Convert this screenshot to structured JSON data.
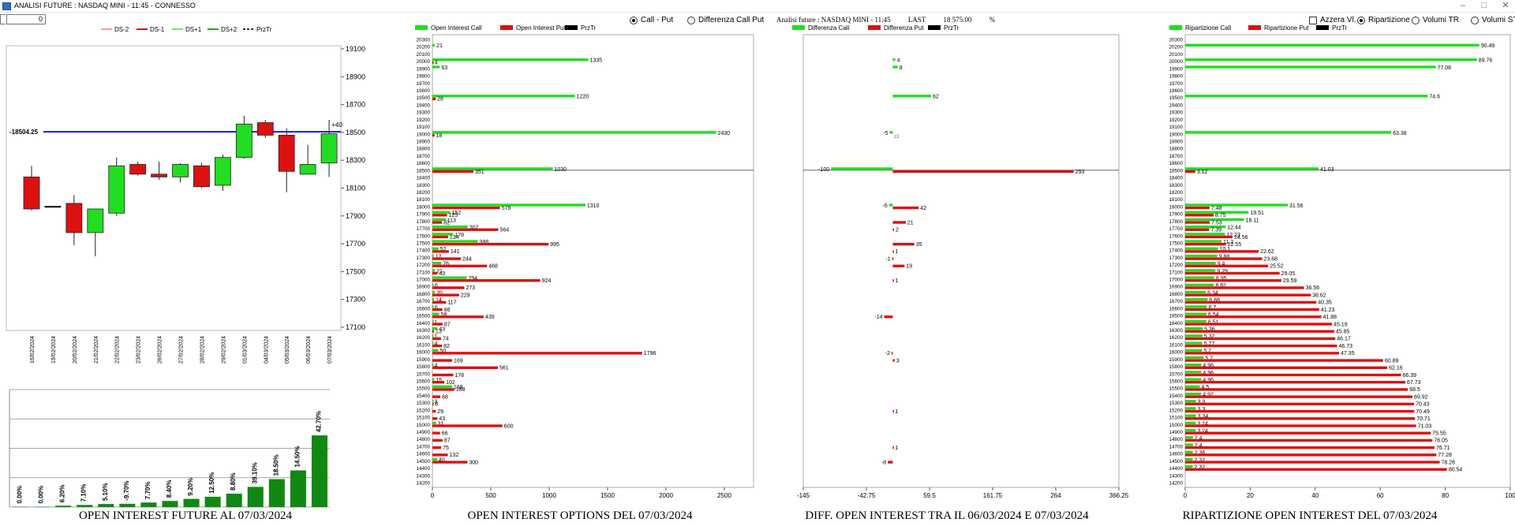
{
  "window": {
    "title": "ANALISI FUTURE : NASDAQ MINI - 11:45 - CONNESSO",
    "min_icon": "minimize-icon",
    "max_icon": "maximize-icon",
    "close_icon": "close-icon"
  },
  "controls": {
    "zoom_value": "0",
    "call_put_label": "Call - Put",
    "diff_call_put_label": "Differenza Call Put",
    "selected_mode": "call_put",
    "azzera_label": "Azzera Vl.",
    "ripartizione_label": "Ripartizione",
    "volumi_tr_label": "Volumi TR",
    "volumi_st_label": "Volumi ST",
    "selected_volume_mode": "ripartizione"
  },
  "header_info": {
    "label": "Analisi future : NASDAQ MINI - 11:45",
    "last_label": "LAST",
    "last_value": "18 575.00",
    "pct": "%"
  },
  "colors": {
    "green": "#22dd22",
    "red": "#dd1111",
    "dark_green": "#118811",
    "blue_line": "#1a1acc",
    "grid": "#888888"
  },
  "panel_titles": {
    "future": "OPEN INTEREST FUTURE AL 07/03/2024",
    "options": "OPEN INTEREST OPTIONS DEL 07/03/2024",
    "diff": "DIFF. OPEN INTEREST TRA IL 06/03/2024 E 07/03/2024",
    "ripartizione": "RIPARTIZIONE OPEN INTEREST DEL 07/03/2024"
  },
  "chart_data": [
    {
      "type": "candlestick",
      "legend": [
        "DS-2",
        "DS-1",
        "DS+1",
        "DS+2",
        "PrzTr"
      ],
      "legend_colors": [
        "#f5a0a0",
        "#dd1111",
        "#66ee66",
        "#22aa22",
        "#333333"
      ],
      "y_ticks": [
        "19100",
        "18900",
        "18700",
        "18500",
        "18300",
        "18100",
        "17900",
        "17700",
        "17500",
        "17300",
        "17100"
      ],
      "ylim": [
        17100,
        19100
      ],
      "price_line": 18504.25,
      "price_label": "-18504.25",
      "price_offset_label": "+40",
      "dates": [
        "16/02/2024",
        "19/02/2024",
        "20/02/2024",
        "21/02/2024",
        "22/02/2024",
        "23/02/2024",
        "26/02/2024",
        "27/02/2024",
        "28/02/2024",
        "29/02/2024",
        "01/03/2024",
        "04/03/2024",
        "05/03/2024",
        "06/03/2024",
        "07/03/2024"
      ],
      "candles": [
        {
          "o": 18180,
          "c": 17950,
          "h": 18260,
          "l": 17940,
          "dir": "down"
        },
        {
          "o": 17970,
          "c": 17970,
          "h": 17970,
          "l": 17970,
          "dir": "flat"
        },
        {
          "o": 17990,
          "c": 17780,
          "h": 18050,
          "l": 17690,
          "dir": "down"
        },
        {
          "o": 17780,
          "c": 17950,
          "h": 17950,
          "l": 17610,
          "dir": "up"
        },
        {
          "o": 17920,
          "c": 18260,
          "h": 18320,
          "l": 17900,
          "dir": "up"
        },
        {
          "o": 18270,
          "c": 18200,
          "h": 18290,
          "l": 18190,
          "dir": "down"
        },
        {
          "o": 18200,
          "c": 18180,
          "h": 18290,
          "l": 18160,
          "dir": "down"
        },
        {
          "o": 18180,
          "c": 18270,
          "h": 18280,
          "l": 18140,
          "dir": "up"
        },
        {
          "o": 18260,
          "c": 18110,
          "h": 18280,
          "l": 18100,
          "dir": "down"
        },
        {
          "o": 18120,
          "c": 18320,
          "h": 18340,
          "l": 18080,
          "dir": "up"
        },
        {
          "o": 18320,
          "c": 18560,
          "h": 18620,
          "l": 18310,
          "dir": "up"
        },
        {
          "o": 18570,
          "c": 18480,
          "h": 18590,
          "l": 18460,
          "dir": "down"
        },
        {
          "o": 18480,
          "c": 18220,
          "h": 18530,
          "l": 18070,
          "dir": "down"
        },
        {
          "o": 18200,
          "c": 18270,
          "h": 18410,
          "l": 18200,
          "dir": "up"
        },
        {
          "o": 18280,
          "c": 18490,
          "h": 18590,
          "l": 18180,
          "dir": "up"
        }
      ]
    },
    {
      "type": "bar",
      "title": "OPEN INTEREST FUTURE AL 07/03/2024",
      "labels": [
        "0.00%",
        "0.00%",
        "6.20%",
        "7.10%",
        "5.10%",
        "-9.70%",
        "7.70%",
        "8.40%",
        "9.20%",
        "12.50%",
        "8.80%",
        "39.10%",
        "18.50%",
        "14.50%",
        "42.70%"
      ],
      "values": [
        0.3,
        0.3,
        1.2,
        1.8,
        2.6,
        2.8,
        3.9,
        5.2,
        7.0,
        8.8,
        11.4,
        17.2,
        23.8,
        31.2,
        61.0
      ],
      "ylim": [
        0,
        100
      ]
    },
    {
      "type": "horizontal-bar",
      "title": "OPEN INTEREST OPTIONS DEL 07/03/2024",
      "legend": [
        "Open Interest Call",
        "Open Interest Put",
        "PrzTr"
      ],
      "strike_max": 20300,
      "strike_min": 14200,
      "strike_step": 100,
      "price_strike": 18500,
      "xlim": [
        0,
        2750
      ],
      "x_ticks": [
        0,
        500,
        1000,
        1500,
        2000,
        2500
      ],
      "rows": [
        {
          "k": 20200,
          "call": 21,
          "put": 0
        },
        {
          "k": 20000,
          "call": 1335,
          "put": 4
        },
        {
          "k": 19900,
          "call": 63,
          "put": 0
        },
        {
          "k": 19500,
          "call": 1220,
          "put": 28
        },
        {
          "k": 19000,
          "call": 2430,
          "put": 18
        },
        {
          "k": 18500,
          "call": 1030,
          "put": 351
        },
        {
          "k": 18000,
          "call": 1310,
          "put": 579
        },
        {
          "k": 17900,
          "call": 152,
          "put": 125
        },
        {
          "k": 17800,
          "call": 113,
          "put": 82
        },
        {
          "k": 17700,
          "call": 302,
          "put": 564
        },
        {
          "k": 17600,
          "call": 178,
          "put": 134
        },
        {
          "k": 17500,
          "call": 388,
          "put": 995
        },
        {
          "k": 17400,
          "call": 52,
          "put": 141
        },
        {
          "k": 17300,
          "call": 12,
          "put": 244
        },
        {
          "k": 17200,
          "call": 76,
          "put": 468
        },
        {
          "k": 17100,
          "call": 21,
          "put": 43
        },
        {
          "k": 17000,
          "call": 294,
          "put": 924
        },
        {
          "k": 16900,
          "call": 6,
          "put": 273
        },
        {
          "k": 16800,
          "call": 20,
          "put": 229
        },
        {
          "k": 16700,
          "call": 14,
          "put": 117
        },
        {
          "k": 16600,
          "call": 6,
          "put": 86
        },
        {
          "k": 16500,
          "call": 58,
          "put": 439
        },
        {
          "k": 16400,
          "call": 1,
          "put": 87
        },
        {
          "k": 16300,
          "call": 43,
          "put": 13
        },
        {
          "k": 16200,
          "call": 1,
          "put": 74
        },
        {
          "k": 16100,
          "call": 4,
          "put": 82
        },
        {
          "k": 16000,
          "call": 50,
          "put": 1796
        },
        {
          "k": 15900,
          "call": 0,
          "put": 169
        },
        {
          "k": 15800,
          "call": 4,
          "put": 561
        },
        {
          "k": 15700,
          "call": 0,
          "put": 178
        },
        {
          "k": 15600,
          "call": 15,
          "put": 102
        },
        {
          "k": 15500,
          "call": 168,
          "put": 188
        },
        {
          "k": 15400,
          "call": 0,
          "put": 68
        },
        {
          "k": 15300,
          "call": 3,
          "put": 8
        },
        {
          "k": 15200,
          "call": 0,
          "put": 29
        },
        {
          "k": 15100,
          "call": 0,
          "put": 43
        },
        {
          "k": 15000,
          "call": 31,
          "put": 600
        },
        {
          "k": 14900,
          "call": 0,
          "put": 66
        },
        {
          "k": 14800,
          "call": 0,
          "put": 87
        },
        {
          "k": 14700,
          "call": 0,
          "put": 75
        },
        {
          "k": 14600,
          "call": 0,
          "put": 132
        },
        {
          "k": 14500,
          "call": 40,
          "put": 300
        }
      ]
    },
    {
      "type": "horizontal-bar",
      "title": "DIFF. OPEN INTEREST TRA IL 06/03/2024 E 07/03/2024",
      "legend": [
        "Differenza Call",
        "Differenza Put",
        "PrzTr"
      ],
      "xlim": [
        -145,
        366.25
      ],
      "x_ticks": [
        "-145",
        "-42.75",
        "59.5",
        "161.75",
        "264",
        "366.25"
      ],
      "rows": [
        {
          "k": 20000,
          "call": 4,
          "put": 0
        },
        {
          "k": 19900,
          "call": 8,
          "put": 0
        },
        {
          "k": 19500,
          "call": 62,
          "put": 0
        },
        {
          "k": 19000,
          "call": -5,
          "put": 0,
          "extra": "13"
        },
        {
          "k": 18500,
          "call": -100,
          "put": 293
        },
        {
          "k": 18000,
          "call": -6,
          "put": 42
        },
        {
          "k": 17800,
          "call": 0,
          "put": 21
        },
        {
          "k": 17700,
          "call": 0,
          "put": 2
        },
        {
          "k": 17500,
          "call": 0,
          "put": 35
        },
        {
          "k": 17400,
          "call": 0,
          "put": 1
        },
        {
          "k": 17300,
          "call": 0,
          "put": -1
        },
        {
          "k": 17200,
          "call": 0,
          "put": 19
        },
        {
          "k": 17000,
          "call": 0,
          "put": 1
        },
        {
          "k": 16500,
          "call": 0,
          "put": -14
        },
        {
          "k": 16000,
          "call": 0,
          "put": -2
        },
        {
          "k": 15900,
          "call": 0,
          "put": 3
        },
        {
          "k": 15200,
          "call": 0,
          "put": 1
        },
        {
          "k": 14700,
          "call": 0,
          "put": 1
        },
        {
          "k": 14500,
          "call": 0,
          "put": -8
        }
      ]
    },
    {
      "type": "horizontal-bar",
      "title": "RIPARTIZIONE OPEN INTEREST DEL 07/03/2024",
      "legend": [
        "Ripartizione Call",
        "Ripartizione Put",
        "PrzTr"
      ],
      "xlim": [
        0,
        100
      ],
      "x_ticks": [
        0,
        20,
        40,
        60,
        80,
        100
      ],
      "rows": [
        {
          "k": 20200,
          "call": 90.49,
          "put": 0
        },
        {
          "k": 20000,
          "call": 89.76,
          "put": 0
        },
        {
          "k": 19900,
          "call": 77.08,
          "put": 0
        },
        {
          "k": 19500,
          "call": 74.6,
          "put": 0
        },
        {
          "k": 19000,
          "call": 63.38,
          "put": 0
        },
        {
          "k": 18500,
          "call": 41.03,
          "put": 3.12
        },
        {
          "k": 18000,
          "call": 31.56,
          "put": 7.48
        },
        {
          "k": 17900,
          "call": 19.51,
          "put": 8.75
        },
        {
          "k": 17800,
          "call": 18.11,
          "put": 7.53
        },
        {
          "k": 17700,
          "call": 12.44,
          "put": 7.39
        },
        {
          "k": 17600,
          "call": 12.23,
          "put": 14.56
        },
        {
          "k": 17500,
          "call": 11.2,
          "put": 12.55
        },
        {
          "k": 17400,
          "call": 10.1,
          "put": 22.62
        },
        {
          "k": 17300,
          "call": 9.88,
          "put": 23.68
        },
        {
          "k": 17200,
          "call": 9.4,
          "put": 25.52
        },
        {
          "k": 17100,
          "call": 9.29,
          "put": 29.05
        },
        {
          "k": 17000,
          "call": 8.95,
          "put": 29.59
        },
        {
          "k": 16900,
          "call": 8.82,
          "put": 36.56
        },
        {
          "k": 16800,
          "call": 6.34,
          "put": 38.62
        },
        {
          "k": 16700,
          "call": 6.88,
          "put": 40.35
        },
        {
          "k": 16600,
          "call": 6.7,
          "put": 41.23
        },
        {
          "k": 16500,
          "call": 6.54,
          "put": 41.88
        },
        {
          "k": 16400,
          "call": 6.51,
          "put": 45.19
        },
        {
          "k": 16300,
          "call": 5.36,
          "put": 45.85
        },
        {
          "k": 16200,
          "call": 5.32,
          "put": 46.17
        },
        {
          "k": 16100,
          "call": 5.27,
          "put": 46.73
        },
        {
          "k": 16000,
          "call": 5.2,
          "put": 47.35
        },
        {
          "k": 15900,
          "call": 5.7,
          "put": 60.89
        },
        {
          "k": 15800,
          "call": 4.96,
          "put": 62.16
        },
        {
          "k": 15700,
          "call": 4.96,
          "put": 66.39
        },
        {
          "k": 15600,
          "call": 4.96,
          "put": 67.73
        },
        {
          "k": 15500,
          "call": 4.5,
          "put": 68.5
        },
        {
          "k": 15400,
          "call": 4.92,
          "put": 69.92
        },
        {
          "k": 15300,
          "call": 3.3,
          "put": 70.43
        },
        {
          "k": 15200,
          "call": 3.3,
          "put": 70.49
        },
        {
          "k": 15100,
          "call": 3.34,
          "put": 70.71
        },
        {
          "k": 15000,
          "call": 3.24,
          "put": 71.03
        },
        {
          "k": 14900,
          "call": 3.24,
          "put": 75.55
        },
        {
          "k": 14800,
          "call": 2.4,
          "put": 76.05
        },
        {
          "k": 14700,
          "call": 2.4,
          "put": 76.71
        },
        {
          "k": 14600,
          "call": 2.36,
          "put": 77.28
        },
        {
          "k": 14500,
          "call": 2.32,
          "put": 78.28
        },
        {
          "k": 14400,
          "call": 2.32,
          "put": 80.54
        }
      ]
    }
  ]
}
